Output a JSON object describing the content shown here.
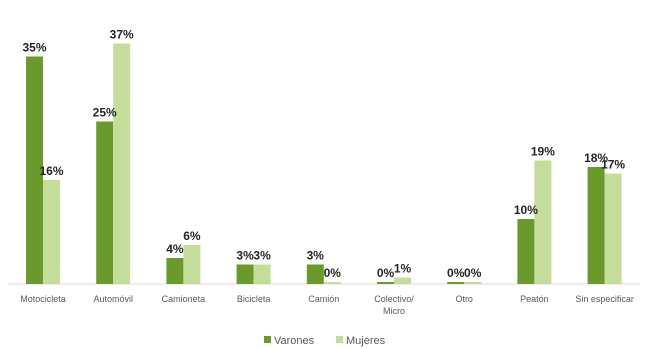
{
  "chart_data": {
    "type": "bar",
    "categories": [
      "Motocicleta",
      "Automóvil",
      "Camioneta",
      "Bicicleta",
      "Camión",
      "Colectivo/ Micro",
      "Otro",
      "Peatón",
      "Sin especificar"
    ],
    "series": [
      {
        "name": "Varones",
        "values": [
          35,
          25,
          4,
          3,
          3,
          0,
          0,
          10,
          18
        ],
        "labels": [
          "35%",
          "25%",
          "4%",
          "3%",
          "3%",
          "0%",
          "0%",
          "10%",
          "18%"
        ],
        "color": "#6a9a2c"
      },
      {
        "name": "Mujeres",
        "values": [
          16,
          37,
          6,
          3,
          0,
          1,
          0,
          19,
          17
        ],
        "labels": [
          "16%",
          "37%",
          "6%",
          "3%",
          "0%",
          "1%",
          "0%",
          "19%",
          "17%"
        ],
        "color": "#c5dd9a"
      }
    ],
    "ylim": [
      0,
      40
    ],
    "grid": false,
    "legend_position": "bottom-center",
    "title": "",
    "xlabel": "",
    "ylabel": ""
  }
}
